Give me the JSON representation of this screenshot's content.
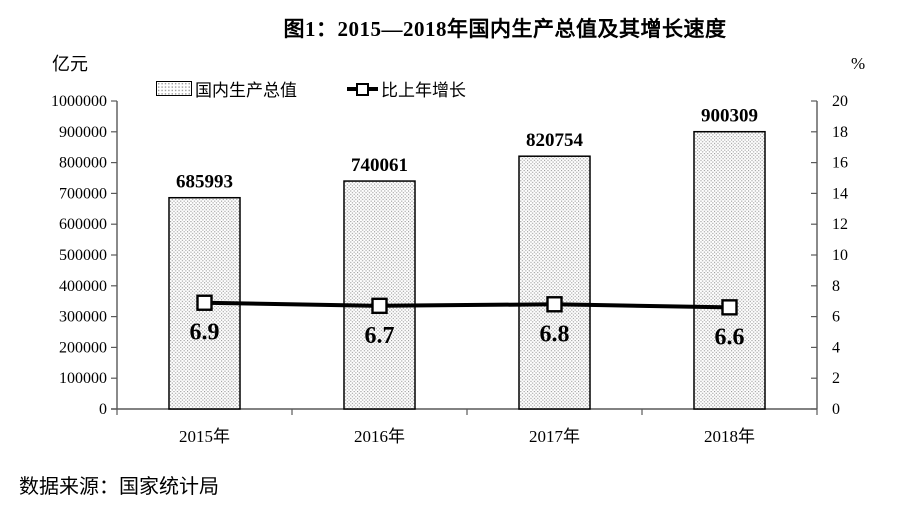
{
  "chart_data": {
    "type": "combo-bar-line",
    "title": "图1：2015—2018年国内生产总值及其增长速度",
    "categories": [
      "2015年",
      "2016年",
      "2017年",
      "2018年"
    ],
    "series": [
      {
        "name": "国内生产总值",
        "type": "bar",
        "axis": "left",
        "values": [
          685993,
          740061,
          820754,
          900309
        ],
        "fill": "pattern-dots",
        "border_color": "#000000"
      },
      {
        "name": "比上年增长",
        "type": "line",
        "axis": "right",
        "values": [
          6.9,
          6.7,
          6.8,
          6.6
        ],
        "color": "#000000",
        "marker": "hollow-square"
      }
    ],
    "left_axis": {
      "label": "亿元",
      "min": 0,
      "max": 1000000,
      "step": 100000
    },
    "right_axis": {
      "label": "%",
      "min": 0,
      "max": 20,
      "step": 2
    },
    "grid": false,
    "legend_position": "top",
    "source": "数据来源：国家统计局",
    "colors": {
      "axis": "#595959",
      "text": "#000000",
      "bar_fill_dot": "#9a9a9a",
      "background": "#ffffff"
    }
  }
}
